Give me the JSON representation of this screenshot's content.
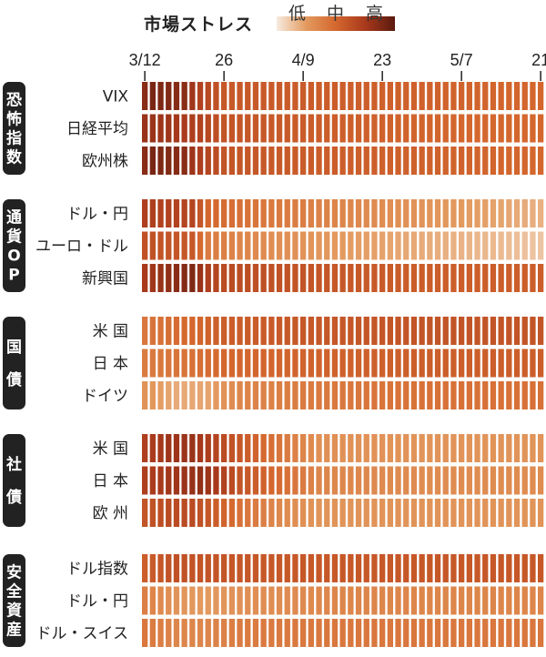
{
  "legend": {
    "title": "市場ストレス",
    "ticks": [
      "低",
      "中",
      "高"
    ],
    "gradient": [
      "#f7ebe0",
      "#e39a5f",
      "#d4672e",
      "#a8391c",
      "#5a1a0e"
    ]
  },
  "chart_data": {
    "type": "heatmap",
    "x_tick_labels": [
      {
        "label": "3/12",
        "index": 0
      },
      {
        "label": "26",
        "index": 10
      },
      {
        "label": "4/9",
        "index": 20
      },
      {
        "label": "23",
        "index": 30
      },
      {
        "label": "5/7",
        "index": 40
      },
      {
        "label": "21",
        "index": 50
      }
    ],
    "days": 51,
    "scale_range": [
      0,
      1
    ],
    "groups": [
      {
        "label": "恐怖指数",
        "rows": [
          {
            "label": "VIX",
            "profile": [
              [
                0,
                0.85
              ],
              [
                1,
                0.9
              ],
              [
                5,
                0.85
              ],
              [
                7,
                0.7
              ],
              [
                10,
                0.58
              ],
              [
                20,
                0.56
              ],
              [
                40,
                0.52
              ],
              [
                50,
                0.5
              ]
            ]
          },
          {
            "label": "日経平均",
            "profile": [
              [
                0,
                0.8
              ],
              [
                3,
                0.78
              ],
              [
                7,
                0.7
              ],
              [
                10,
                0.6
              ],
              [
                20,
                0.56
              ],
              [
                40,
                0.5
              ],
              [
                50,
                0.5
              ]
            ]
          },
          {
            "label": "欧州株",
            "profile": [
              [
                0,
                0.85
              ],
              [
                1,
                0.9
              ],
              [
                5,
                0.85
              ],
              [
                7,
                0.72
              ],
              [
                10,
                0.6
              ],
              [
                20,
                0.56
              ],
              [
                40,
                0.52
              ],
              [
                50,
                0.5
              ]
            ]
          }
        ]
      },
      {
        "label": "通貨OP",
        "rows": [
          {
            "label": "ドル・円",
            "profile": [
              [
                0,
                0.72
              ],
              [
                6,
                0.68
              ],
              [
                8,
                0.5
              ],
              [
                15,
                0.42
              ],
              [
                25,
                0.35
              ],
              [
                35,
                0.28
              ],
              [
                45,
                0.22
              ],
              [
                50,
                0.18
              ]
            ]
          },
          {
            "label": "ユーロ・ドル",
            "profile": [
              [
                0,
                0.62
              ],
              [
                6,
                0.58
              ],
              [
                8,
                0.4
              ],
              [
                15,
                0.32
              ],
              [
                25,
                0.25
              ],
              [
                35,
                0.2
              ],
              [
                45,
                0.15
              ],
              [
                50,
                0.12
              ]
            ]
          },
          {
            "label": "新興国",
            "profile": [
              [
                0,
                0.75
              ],
              [
                4,
                0.85
              ],
              [
                6,
                0.88
              ],
              [
                8,
                0.72
              ],
              [
                10,
                0.65
              ],
              [
                20,
                0.6
              ],
              [
                35,
                0.55
              ],
              [
                50,
                0.55
              ]
            ]
          }
        ]
      },
      {
        "label": "国債",
        "rows": [
          {
            "label": "米 国",
            "profile": [
              [
                0,
                0.42
              ],
              [
                2,
                0.45
              ],
              [
                6,
                0.5
              ],
              [
                10,
                0.55
              ],
              [
                20,
                0.58
              ],
              [
                35,
                0.6
              ],
              [
                50,
                0.6
              ]
            ]
          },
          {
            "label": "日 本",
            "profile": [
              [
                0,
                0.4
              ],
              [
                6,
                0.45
              ],
              [
                10,
                0.5
              ],
              [
                20,
                0.52
              ],
              [
                35,
                0.55
              ],
              [
                50,
                0.55
              ]
            ]
          },
          {
            "label": "ドイツ",
            "profile": [
              [
                0,
                0.28
              ],
              [
                4,
                0.2
              ],
              [
                8,
                0.22
              ],
              [
                12,
                0.35
              ],
              [
                20,
                0.4
              ],
              [
                35,
                0.45
              ],
              [
                50,
                0.45
              ]
            ]
          }
        ]
      },
      {
        "label": "社債",
        "rows": [
          {
            "label": "米 国",
            "profile": [
              [
                0,
                0.72
              ],
              [
                3,
                0.78
              ],
              [
                6,
                0.8
              ],
              [
                8,
                0.72
              ],
              [
                12,
                0.58
              ],
              [
                18,
                0.4
              ],
              [
                22,
                0.3
              ],
              [
                35,
                0.28
              ],
              [
                50,
                0.28
              ]
            ]
          },
          {
            "label": "日 本",
            "profile": [
              [
                0,
                0.72
              ],
              [
                4,
                0.78
              ],
              [
                7,
                0.82
              ],
              [
                9,
                0.75
              ],
              [
                12,
                0.6
              ],
              [
                18,
                0.45
              ],
              [
                22,
                0.35
              ],
              [
                35,
                0.32
              ],
              [
                50,
                0.32
              ]
            ]
          },
          {
            "label": "欧 州",
            "profile": [
              [
                0,
                0.6
              ],
              [
                3,
                0.65
              ],
              [
                6,
                0.65
              ],
              [
                9,
                0.55
              ],
              [
                13,
                0.42
              ],
              [
                18,
                0.32
              ],
              [
                22,
                0.28
              ],
              [
                35,
                0.28
              ],
              [
                50,
                0.28
              ]
            ]
          }
        ]
      },
      {
        "label": "安全資産",
        "rows": [
          {
            "label": "ドル指数",
            "profile": [
              [
                0,
                0.55
              ],
              [
                4,
                0.62
              ],
              [
                8,
                0.6
              ],
              [
                15,
                0.58
              ],
              [
                30,
                0.58
              ],
              [
                50,
                0.58
              ]
            ]
          },
          {
            "label": "ドル・円",
            "profile": [
              [
                0,
                0.38
              ],
              [
                4,
                0.28
              ],
              [
                8,
                0.25
              ],
              [
                12,
                0.3
              ],
              [
                25,
                0.35
              ],
              [
                50,
                0.35
              ]
            ]
          },
          {
            "label": "ドル・スイス",
            "profile": [
              [
                0,
                0.42
              ],
              [
                4,
                0.35
              ],
              [
                8,
                0.35
              ],
              [
                12,
                0.4
              ],
              [
                25,
                0.42
              ],
              [
                50,
                0.42
              ]
            ]
          }
        ]
      }
    ]
  }
}
